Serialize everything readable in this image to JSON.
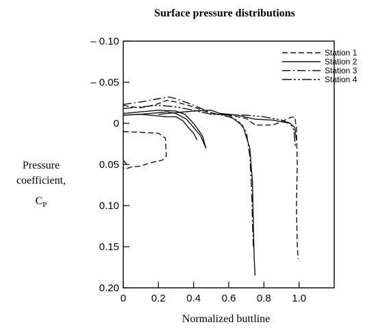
{
  "chart_data": {
    "type": "line",
    "title": "Surface pressure distributions",
    "xlabel": "Normalized buttline",
    "ylabel": [
      "Pressure",
      "coefficient,",
      "C",
      "P"
    ],
    "xlim": [
      0,
      1.2
    ],
    "ylim": [
      0.2,
      -0.1
    ],
    "y_inverted": true,
    "xticks": [
      {
        "value": 0,
        "label": "0"
      },
      {
        "value": 0.2,
        "label": "0.2"
      },
      {
        "value": 0.4,
        "label": "0.4"
      },
      {
        "value": 0.6,
        "label": "0.6"
      },
      {
        "value": 0.8,
        "label": "0.8"
      },
      {
        "value": 1.0,
        "label": "1.0"
      }
    ],
    "yticks": [
      {
        "value": -0.1,
        "label": "– 0.10"
      },
      {
        "value": -0.05,
        "label": "– 0.05"
      },
      {
        "value": 0,
        "label": "0"
      },
      {
        "value": 0.05,
        "label": "0.05"
      },
      {
        "value": 0.1,
        "label": "0.10"
      },
      {
        "value": 0.15,
        "label": "0.15"
      },
      {
        "value": 0.2,
        "label": "0.20"
      }
    ],
    "grid": false,
    "legend": "top-right",
    "series": [
      {
        "name": "Station 1",
        "dash": "8,4",
        "segments": [
          [
            [
              0,
              -0.022
            ],
            [
              0.05,
              -0.02
            ],
            [
              0.1,
              -0.019
            ],
            [
              0.15,
              -0.021
            ],
            [
              0.2,
              -0.024
            ],
            [
              0.25,
              -0.028
            ],
            [
              0.3,
              -0.026
            ],
            [
              0.4,
              -0.02
            ],
            [
              0.5,
              -0.012
            ],
            [
              0.6,
              -0.01
            ],
            [
              0.7,
              -0.006
            ],
            [
              0.75,
              0.002
            ],
            [
              0.85,
              0.002
            ],
            [
              0.9,
              -0.002
            ],
            [
              0.95,
              -0.007
            ],
            [
              0.975,
              -0.008
            ],
            [
              0.985,
              0.005
            ],
            [
              0.99,
              0.05
            ],
            [
              0.985,
              0.1
            ],
            [
              0.99,
              0.15
            ],
            [
              0.995,
              0.165
            ]
          ],
          [
            [
              0,
              0.01
            ],
            [
              0.1,
              0.011
            ],
            [
              0.2,
              0.012
            ],
            [
              0.24,
              0.018
            ],
            [
              0.245,
              0.04
            ],
            [
              0.22,
              0.045
            ],
            [
              0.15,
              0.048
            ],
            [
              0.1,
              0.052
            ],
            [
              0.05,
              0.053
            ],
            [
              0.02,
              0.055
            ],
            [
              0,
              0.055
            ]
          ],
          [
            [
              0,
              0.045
            ],
            [
              0.02,
              0.05
            ]
          ]
        ]
      },
      {
        "name": "Station 2",
        "dash": "",
        "segments": [
          [
            [
              0,
              -0.01
            ],
            [
              0.1,
              -0.011
            ],
            [
              0.2,
              -0.013
            ],
            [
              0.25,
              -0.014
            ],
            [
              0.3,
              -0.012
            ],
            [
              0.36,
              -0.005
            ],
            [
              0.4,
              0.005
            ],
            [
              0.44,
              0.015
            ],
            [
              0.47,
              0.03
            ],
            [
              0.45,
              0.015
            ],
            [
              0.4,
              0.0
            ],
            [
              0.35,
              -0.011
            ],
            [
              0.3,
              -0.015
            ],
            [
              0.2,
              -0.016
            ],
            [
              0.1,
              -0.014
            ],
            [
              0,
              -0.012
            ]
          ],
          [
            [
              0,
              -0.01
            ],
            [
              0.1,
              -0.011
            ],
            [
              0.2,
              -0.009
            ],
            [
              0.25,
              -0.008
            ],
            [
              0.3,
              -0.008
            ],
            [
              0.34,
              -0.003
            ],
            [
              0.37,
              0.005
            ],
            [
              0.4,
              0.012
            ],
            [
              0.42,
              0.02
            ]
          ],
          [
            [
              0.2,
              -0.011
            ],
            [
              0.3,
              -0.013
            ],
            [
              0.4,
              -0.015
            ],
            [
              0.5,
              -0.016
            ],
            [
              0.55,
              -0.012
            ],
            [
              0.6,
              -0.01
            ],
            [
              0.68,
              0.003
            ],
            [
              0.72,
              0.03
            ],
            [
              0.735,
              0.07
            ],
            [
              0.74,
              0.12
            ],
            [
              0.745,
              0.165
            ],
            [
              0.75,
              0.185
            ]
          ],
          [
            [
              0.55,
              -0.012
            ],
            [
              0.65,
              -0.01
            ],
            [
              0.75,
              -0.005
            ],
            [
              0.85,
              -0.004
            ],
            [
              0.95,
              0.0
            ],
            [
              0.975,
              0.005
            ],
            [
              0.985,
              0.02
            ]
          ]
        ]
      },
      {
        "name": "Station 3",
        "dash": "12,4,2,4",
        "segments": [
          [
            [
              0,
              -0.023
            ],
            [
              0.1,
              -0.026
            ],
            [
              0.2,
              -0.03
            ],
            [
              0.26,
              -0.032
            ],
            [
              0.3,
              -0.03
            ],
            [
              0.4,
              -0.022
            ],
            [
              0.5,
              -0.013
            ],
            [
              0.6,
              -0.008
            ],
            [
              0.65,
              -0.004
            ],
            [
              0.7,
              0.01
            ],
            [
              0.72,
              0.04
            ],
            [
              0.73,
              0.08
            ],
            [
              0.735,
              0.12
            ],
            [
              0.74,
              0.15
            ]
          ]
        ]
      },
      {
        "name": "Station 4",
        "dash": "14,3,3,3,3,3",
        "segments": [
          [
            [
              0,
              -0.018
            ],
            [
              0.1,
              -0.02
            ],
            [
              0.2,
              -0.022
            ],
            [
              0.3,
              -0.02
            ],
            [
              0.4,
              -0.016
            ],
            [
              0.5,
              -0.011
            ],
            [
              0.6,
              -0.01
            ],
            [
              0.7,
              -0.01
            ],
            [
              0.8,
              -0.008
            ],
            [
              0.9,
              -0.004
            ],
            [
              0.95,
              0.0
            ],
            [
              0.97,
              0.008
            ],
            [
              0.98,
              0.03
            ]
          ]
        ]
      }
    ]
  }
}
